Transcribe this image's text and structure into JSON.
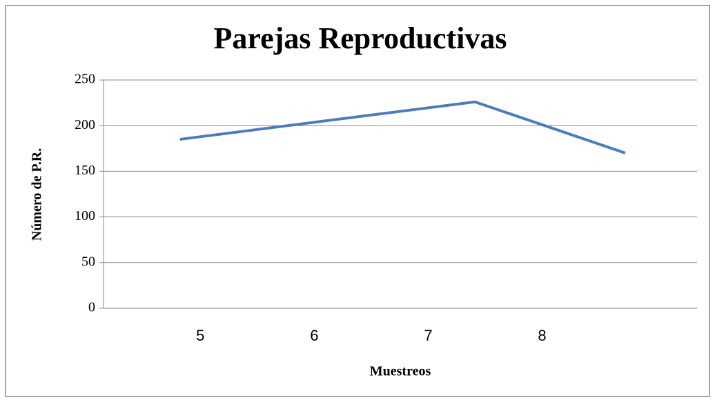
{
  "chart_data": {
    "type": "line",
    "title": "Parejas Reproductivas",
    "x_label": "Muestreos",
    "y_label": "Número de P.R.",
    "x": [
      4.82,
      7.41,
      8.73
    ],
    "series": [
      {
        "name": "Parejas Reproductivas",
        "color": "#4a7ebb",
        "values": [
          185,
          226,
          170
        ]
      }
    ],
    "xlim": [
      4.15,
      9.36
    ],
    "xticks": [
      5,
      6,
      7,
      8
    ],
    "ylim": [
      0,
      250
    ],
    "yticks": [
      0,
      50,
      100,
      150,
      200,
      250
    ],
    "grid": true
  }
}
